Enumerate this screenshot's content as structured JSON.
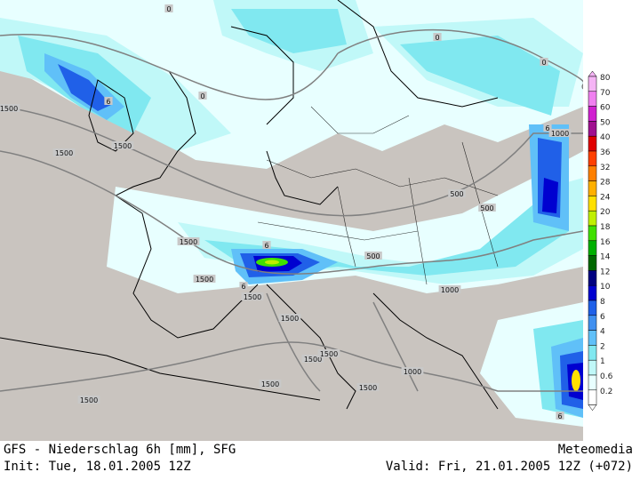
{
  "footer": {
    "line1_left": "GFS - Niederschlag 6h [mm], SFG",
    "line1_right": "Meteomedia",
    "line2_left": "Init: Tue, 18.01.2005 12Z",
    "line2_right": "Valid: Fri, 21.01.2005 12Z (+072)"
  },
  "legend": {
    "levels": [
      "80",
      "70",
      "60",
      "50",
      "40",
      "36",
      "32",
      "28",
      "24",
      "20",
      "18",
      "16",
      "14",
      "12",
      "10",
      "8",
      "6",
      "4",
      "2",
      "1",
      "0.6",
      "0.2"
    ],
    "colors": [
      "#f5b4f5",
      "#f080f0",
      "#d020d0",
      "#a01090",
      "#e00000",
      "#ff4000",
      "#ff8000",
      "#ffb000",
      "#ffe000",
      "#c0f000",
      "#40e000",
      "#00b000",
      "#006800",
      "#000080",
      "#0000d0",
      "#2060e8",
      "#4090f0",
      "#60c0f8",
      "#80e8f0",
      "#c0f8f8",
      "#e8ffff",
      "#ffffff"
    ]
  },
  "isolines": [
    {
      "label": "0",
      "pos": "top-left"
    },
    {
      "label": "0",
      "pos": "top-center"
    },
    {
      "label": "0",
      "pos": "top-right"
    },
    {
      "label": "0",
      "pos": "north-sea"
    },
    {
      "label": "1500",
      "pos": "west-1"
    },
    {
      "label": "1500",
      "pos": "west-2"
    },
    {
      "label": "1500",
      "pos": "west-3"
    },
    {
      "label": "1500",
      "pos": "france"
    },
    {
      "label": "1500",
      "pos": "spain"
    },
    {
      "label": "1500",
      "pos": "alps"
    },
    {
      "label": "1500",
      "pos": "italy"
    },
    {
      "label": "1500",
      "pos": "tyrrhenian"
    },
    {
      "label": "1500",
      "pos": "adriatic"
    },
    {
      "label": "1500",
      "pos": "ionian"
    },
    {
      "label": "1500",
      "pos": "med-west"
    },
    {
      "label": "1500",
      "pos": "south-east"
    },
    {
      "label": "1000",
      "pos": "balkan"
    },
    {
      "label": "1000",
      "pos": "hungary"
    },
    {
      "label": "1000",
      "pos": "east"
    },
    {
      "label": "500",
      "pos": "austria"
    },
    {
      "label": "500",
      "pos": "poland"
    },
    {
      "label": "500",
      "pos": "ukraine"
    },
    {
      "label": "6",
      "pos": "atlantic"
    },
    {
      "label": "6",
      "pos": "alps-north"
    },
    {
      "label": "6",
      "pos": "alps-south"
    },
    {
      "label": "6",
      "pos": "russia"
    },
    {
      "label": "6",
      "pos": "aegean"
    }
  ]
}
